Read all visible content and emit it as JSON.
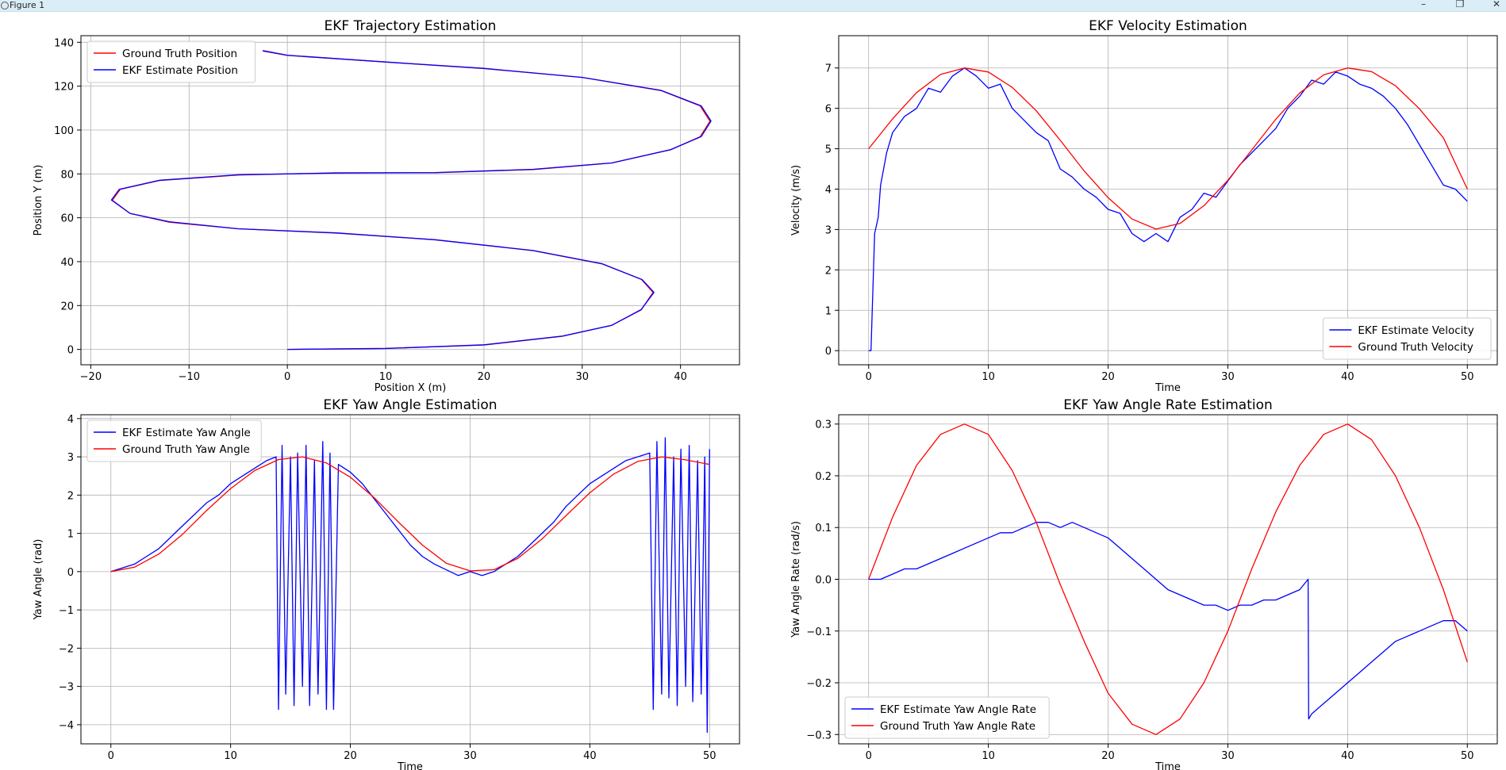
{
  "window": {
    "title": "Figure 1",
    "minimize_label": "–",
    "maximize_label": "❐",
    "close_label": "✕"
  },
  "colors": {
    "blue": "#0000ff",
    "red": "#ff0000",
    "grid": "#b0b0b0",
    "axes": "#000000",
    "titlebar": "#dbeef7"
  },
  "chart_data": [
    {
      "type": "line",
      "title": "EKF Trajectory Estimation",
      "xlabel": "Position X (m)",
      "ylabel": "Position Y (m)",
      "xlim": [
        -21,
        46
      ],
      "ylim": [
        -7,
        143
      ],
      "xticks": [
        -20,
        -10,
        0,
        10,
        20,
        30,
        40
      ],
      "yticks": [
        0,
        20,
        40,
        60,
        80,
        100,
        120,
        140
      ],
      "xticklabels": [
        "−20",
        "−10",
        "0",
        "10",
        "20",
        "30",
        "40"
      ],
      "yticklabels": [
        "0",
        "20",
        "40",
        "60",
        "80",
        "100",
        "120",
        "140"
      ],
      "grid": true,
      "legend": "upper-left",
      "legend_entries": [
        {
          "name": "Ground Truth Position",
          "color": "#ff0000"
        },
        {
          "name": "EKF Estimate Position",
          "color": "#0000ff"
        }
      ],
      "series": [
        {
          "name": "Ground Truth Position",
          "color": "#ff0000",
          "x": [
            0,
            10,
            20,
            28,
            33,
            36,
            37.2,
            36,
            32,
            25,
            15,
            5,
            -5,
            -12,
            -16,
            -17.8,
            -17,
            -13,
            -5,
            5,
            15,
            25,
            33,
            39,
            42,
            43,
            42,
            38,
            30,
            20,
            10,
            0,
            -2.5
          ],
          "y": [
            0,
            0.5,
            2,
            6,
            11,
            18,
            26,
            32,
            39,
            45,
            50,
            53,
            55,
            58,
            62,
            68,
            73,
            77,
            79.5,
            80.5,
            80.5,
            82,
            85,
            91,
            97,
            104,
            111,
            118,
            124,
            128,
            131,
            134,
            136
          ]
        },
        {
          "name": "EKF Estimate Position",
          "color": "#0000ff",
          "x": [
            0,
            10,
            20,
            28,
            33,
            36,
            37.3,
            36.1,
            32,
            25,
            15,
            5,
            -5,
            -12,
            -16,
            -17.9,
            -17.1,
            -13,
            -5,
            5,
            15,
            25,
            33,
            39,
            42.1,
            43.1,
            42.1,
            38,
            30,
            20,
            10,
            0,
            -2.5
          ],
          "y": [
            0,
            0.4,
            2.1,
            6.1,
            11,
            18.2,
            26,
            31.8,
            39.1,
            45.1,
            50,
            53.1,
            55,
            58.2,
            62,
            68.1,
            73,
            77.1,
            79.6,
            80.4,
            80.6,
            82.1,
            85,
            91.1,
            97,
            104.1,
            111,
            118.1,
            124,
            128.1,
            131,
            134.1,
            136.2
          ]
        }
      ]
    },
    {
      "type": "line",
      "title": "EKF Velocity Estimation",
      "xlabel": "Time",
      "ylabel": "Velocity (m/s)",
      "xlim": [
        -2.5,
        52.5
      ],
      "ylim": [
        -0.35,
        7.8
      ],
      "xticks": [
        0,
        10,
        20,
        30,
        40,
        50
      ],
      "yticks": [
        0,
        1,
        2,
        3,
        4,
        5,
        6,
        7
      ],
      "xticklabels": [
        "0",
        "10",
        "20",
        "30",
        "40",
        "50"
      ],
      "yticklabels": [
        "0",
        "1",
        "2",
        "3",
        "4",
        "5",
        "6",
        "7"
      ],
      "grid": true,
      "legend": "lower-right",
      "legend_entries": [
        {
          "name": "EKF Estimate Velocity",
          "color": "#0000ff"
        },
        {
          "name": "Ground Truth Velocity",
          "color": "#ff0000"
        }
      ],
      "series": [
        {
          "name": "EKF Estimate Velocity",
          "color": "#0000ff",
          "x": [
            0,
            0.2,
            0.5,
            0.8,
            1,
            1.5,
            2,
            3,
            4,
            5,
            6,
            7,
            8,
            9,
            10,
            11,
            12,
            13,
            14,
            15,
            16,
            17,
            18,
            19,
            20,
            21,
            22,
            23,
            24,
            25,
            26,
            27,
            28,
            29,
            30,
            31,
            32,
            33,
            34,
            35,
            36,
            37,
            38,
            39,
            40,
            41,
            42,
            43,
            44,
            45,
            46,
            47,
            48,
            49,
            50
          ],
          "y": [
            0,
            0,
            2.9,
            3.3,
            4.1,
            4.9,
            5.4,
            5.8,
            6.0,
            6.5,
            6.4,
            6.8,
            7.0,
            6.8,
            6.5,
            6.6,
            6.0,
            5.7,
            5.4,
            5.2,
            4.5,
            4.3,
            4.0,
            3.8,
            3.5,
            3.4,
            2.9,
            2.7,
            2.9,
            2.7,
            3.3,
            3.5,
            3.9,
            3.8,
            4.2,
            4.6,
            4.9,
            5.2,
            5.5,
            6.0,
            6.3,
            6.7,
            6.6,
            6.9,
            6.8,
            6.6,
            6.5,
            6.3,
            6.0,
            5.6,
            5.1,
            4.6,
            4.1,
            4.0,
            3.7
          ]
        },
        {
          "name": "Ground Truth Velocity",
          "color": "#ff0000",
          "x": [
            0,
            2,
            4,
            6,
            8,
            10,
            12,
            14,
            16,
            18,
            20,
            22,
            24,
            26,
            28,
            30,
            32,
            34,
            36,
            38,
            40,
            42,
            44,
            46,
            48,
            50
          ],
          "y": [
            5.0,
            5.74,
            6.39,
            6.84,
            7.0,
            6.9,
            6.52,
            5.94,
            5.21,
            4.45,
            3.79,
            3.26,
            3.01,
            3.15,
            3.59,
            4.22,
            4.97,
            5.73,
            6.38,
            6.83,
            7.0,
            6.91,
            6.56,
            5.99,
            5.27,
            4.0
          ]
        }
      ]
    },
    {
      "type": "line",
      "title": "EKF Yaw Angle Estimation",
      "xlabel": "Time",
      "ylabel": "Yaw Angle (rad)",
      "xlim": [
        -2.5,
        52.5
      ],
      "ylim": [
        -4.5,
        4.1
      ],
      "xticks": [
        0,
        10,
        20,
        30,
        40,
        50
      ],
      "yticks": [
        -4,
        -3,
        -2,
        -1,
        0,
        1,
        2,
        3,
        4
      ],
      "xticklabels": [
        "0",
        "10",
        "20",
        "30",
        "40",
        "50"
      ],
      "yticklabels": [
        "−4",
        "−3",
        "−2",
        "−1",
        "0",
        "1",
        "2",
        "3",
        "4"
      ],
      "grid": true,
      "legend": "upper-left",
      "legend_entries": [
        {
          "name": "EKF Estimate Yaw Angle",
          "color": "#0000ff"
        },
        {
          "name": "Ground Truth Yaw Angle",
          "color": "#ff0000"
        }
      ],
      "series": [
        {
          "name": "EKF Estimate Yaw Angle",
          "color": "#0000ff",
          "x": [
            0,
            1,
            2,
            3,
            4,
            5,
            6,
            7,
            8,
            9,
            10,
            11,
            12,
            13,
            13.8,
            14.0,
            14.3,
            14.6,
            15.0,
            15.3,
            15.6,
            16.0,
            16.3,
            16.6,
            17.0,
            17.3,
            17.7,
            18.0,
            18.3,
            18.6,
            19,
            20,
            21,
            22,
            23,
            24,
            25,
            26,
            27,
            28,
            29,
            30,
            31,
            32,
            33,
            34,
            35,
            36,
            37,
            38,
            39,
            40,
            41,
            42,
            43,
            44,
            45,
            45.3,
            45.6,
            46.0,
            46.3,
            46.6,
            47.0,
            47.3,
            47.6,
            48.0,
            48.3,
            48.6,
            49.0,
            49.3,
            49.6,
            49.8,
            50
          ],
          "y": [
            0,
            0.1,
            0.2,
            0.4,
            0.6,
            0.9,
            1.2,
            1.5,
            1.8,
            2.0,
            2.3,
            2.5,
            2.7,
            2.9,
            3.0,
            -3.6,
            3.3,
            -3.2,
            3.0,
            -3.5,
            3.1,
            -3.0,
            3.3,
            -3.5,
            2.9,
            -3.2,
            3.4,
            -3.6,
            3.1,
            -3.6,
            2.8,
            2.6,
            2.3,
            1.9,
            1.5,
            1.1,
            0.7,
            0.4,
            0.2,
            0.05,
            -0.1,
            0.0,
            -0.1,
            0.0,
            0.2,
            0.4,
            0.7,
            1.0,
            1.3,
            1.7,
            2.0,
            2.3,
            2.5,
            2.7,
            2.9,
            3.0,
            3.1,
            -3.6,
            3.4,
            -3.2,
            3.5,
            -3.3,
            3.0,
            -3.5,
            3.2,
            -3.0,
            3.3,
            -3.4,
            2.9,
            -3.2,
            3.0,
            -4.2,
            3.2
          ]
        },
        {
          "name": "Ground Truth Yaw Angle",
          "color": "#ff0000",
          "x": [
            0,
            2,
            4,
            6,
            8,
            10,
            12,
            14,
            16,
            18,
            20,
            22,
            24,
            26,
            28,
            30,
            32,
            34,
            36,
            38,
            40,
            42,
            44,
            46,
            48,
            50
          ],
          "y": [
            0,
            0.12,
            0.46,
            0.98,
            1.6,
            2.17,
            2.64,
            2.93,
            3.0,
            2.84,
            2.47,
            1.93,
            1.3,
            0.7,
            0.22,
            0.02,
            0.05,
            0.35,
            0.85,
            1.46,
            2.06,
            2.55,
            2.88,
            3.0,
            2.92,
            2.8
          ]
        }
      ]
    },
    {
      "type": "line",
      "title": "EKF Yaw Angle Rate Estimation",
      "xlabel": "Time",
      "ylabel": "Yaw Angle Rate (rad/s)",
      "xlim": [
        -2.5,
        52.5
      ],
      "ylim": [
        -0.318,
        0.318
      ],
      "xticks": [
        0,
        10,
        20,
        30,
        40,
        50
      ],
      "yticks": [
        -0.3,
        -0.2,
        -0.1,
        0.0,
        0.1,
        0.2,
        0.3
      ],
      "xticklabels": [
        "0",
        "10",
        "20",
        "30",
        "40",
        "50"
      ],
      "yticklabels": [
        "−0.3",
        "−0.2",
        "−0.1",
        "0.0",
        "0.1",
        "0.2",
        "0.3"
      ],
      "grid": true,
      "legend": "lower-left",
      "legend_entries": [
        {
          "name": "EKF Estimate Yaw Angle Rate",
          "color": "#0000ff"
        },
        {
          "name": "Ground Truth Yaw Angle Rate",
          "color": "#ff0000"
        }
      ],
      "series": [
        {
          "name": "EKF Estimate Yaw Angle Rate",
          "color": "#0000ff",
          "x": [
            0,
            1,
            2,
            3,
            4,
            5,
            6,
            7,
            8,
            9,
            10,
            11,
            12,
            13,
            14,
            15,
            16,
            17,
            18,
            19,
            20,
            21,
            22,
            23,
            24,
            25,
            26,
            27,
            28,
            29,
            30,
            31,
            32,
            33,
            34,
            35,
            36,
            36.7,
            36.75,
            37,
            38,
            39,
            40,
            41,
            42,
            43,
            44,
            45,
            46,
            47,
            48,
            49,
            50
          ],
          "y": [
            0,
            0,
            0.01,
            0.02,
            0.02,
            0.03,
            0.04,
            0.05,
            0.06,
            0.07,
            0.08,
            0.09,
            0.09,
            0.1,
            0.11,
            0.11,
            0.1,
            0.11,
            0.1,
            0.09,
            0.08,
            0.06,
            0.04,
            0.02,
            0,
            -0.02,
            -0.03,
            -0.04,
            -0.05,
            -0.05,
            -0.06,
            -0.05,
            -0.05,
            -0.04,
            -0.04,
            -0.03,
            -0.02,
            0,
            -0.27,
            -0.26,
            -0.24,
            -0.22,
            -0.2,
            -0.18,
            -0.16,
            -0.14,
            -0.12,
            -0.11,
            -0.1,
            -0.09,
            -0.08,
            -0.08,
            -0.1
          ]
        },
        {
          "name": "Ground Truth Yaw Angle Rate",
          "color": "#ff0000",
          "x": [
            0,
            2,
            4,
            6,
            8,
            10,
            12,
            14,
            16,
            18,
            20,
            22,
            24,
            26,
            28,
            30,
            32,
            34,
            36,
            38,
            40,
            42,
            44,
            46,
            48,
            50
          ],
          "y": [
            0,
            0.12,
            0.22,
            0.28,
            0.3,
            0.28,
            0.21,
            0.11,
            -0.01,
            -0.12,
            -0.22,
            -0.28,
            -0.3,
            -0.27,
            -0.2,
            -0.1,
            0.02,
            0.13,
            0.22,
            0.28,
            0.3,
            0.27,
            0.2,
            0.1,
            -0.02,
            -0.16
          ]
        }
      ]
    }
  ]
}
